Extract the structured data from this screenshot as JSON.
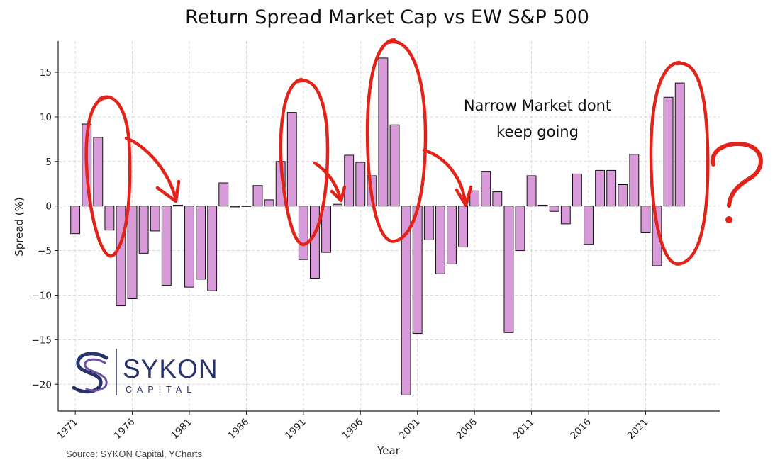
{
  "chart_data": {
    "type": "bar",
    "title": "Return Spread Market Cap vs EW S&P 500",
    "xlabel": "Year",
    "ylabel": "Spread (%)",
    "ylim": [
      -23,
      18.5
    ],
    "xlim": [
      1969.5,
      2027.5
    ],
    "yticks": [
      15,
      10,
      5,
      0,
      -5,
      -10,
      -15,
      -20
    ],
    "ytick_labels": [
      "15",
      "10",
      "5",
      "0",
      "−5",
      "−10",
      "−15",
      "−20"
    ],
    "xticks": [
      1971,
      1976,
      1981,
      1986,
      1991,
      1996,
      2001,
      2006,
      2011,
      2016,
      2021
    ],
    "xtick_labels": [
      "1971",
      "1976",
      "1981",
      "1986",
      "1991",
      "1996",
      "2001",
      "2006",
      "2011",
      "2016",
      "2021"
    ],
    "grid": true,
    "bar_color": "#d89ad9",
    "bar_edge_color": "#111111",
    "x": [
      1971,
      1972,
      1973,
      1974,
      1975,
      1976,
      1977,
      1978,
      1979,
      1980,
      1981,
      1982,
      1983,
      1984,
      1985,
      1986,
      1987,
      1988,
      1989,
      1990,
      1991,
      1992,
      1993,
      1994,
      1995,
      1996,
      1997,
      1998,
      1999,
      2000,
      2001,
      2002,
      2003,
      2004,
      2005,
      2006,
      2007,
      2008,
      2009,
      2010,
      2011,
      2012,
      2013,
      2014,
      2015,
      2016,
      2017,
      2018,
      2019,
      2020,
      2021,
      2022,
      2023,
      2024
    ],
    "values": [
      -3.1,
      9.2,
      7.7,
      -2.7,
      -11.2,
      -10.4,
      -5.3,
      -2.8,
      -8.9,
      0.1,
      -9.1,
      -8.2,
      -9.5,
      2.6,
      -0.1,
      0.0,
      2.3,
      0.7,
      5.0,
      10.5,
      -6.0,
      -8.1,
      -5.2,
      0.2,
      5.7,
      4.9,
      3.4,
      16.6,
      9.1,
      -21.2,
      -14.3,
      -3.8,
      -7.6,
      -6.5,
      -4.6,
      1.7,
      3.9,
      1.6,
      -14.2,
      -5.0,
      3.4,
      0.1,
      -0.6,
      -2.0,
      3.6,
      -4.3,
      4.0,
      4.0,
      2.4,
      5.8,
      -3.0,
      -6.7,
      12.2,
      13.8
    ],
    "annotations": [
      "Narrow Market dont",
      "keep going",
      "?"
    ],
    "source": "Source: SYKON Capital, YCharts"
  },
  "brand": {
    "name": "SYKON",
    "subtitle": "CAPITAL",
    "color": "#28336b"
  },
  "annotation_color": "#e2231a"
}
